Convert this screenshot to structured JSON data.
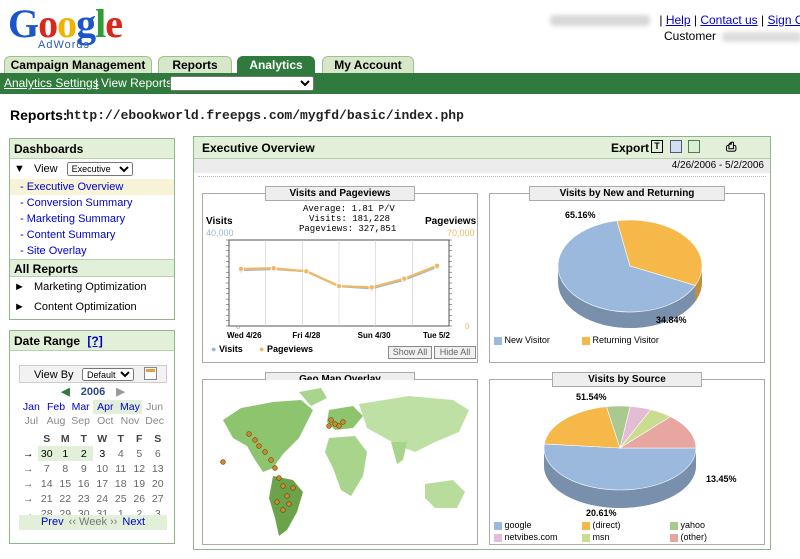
{
  "brand": {
    "logo_text": "Google",
    "logo_sub": "AdWords"
  },
  "top_links": {
    "help": "Help",
    "contact": "Contact us",
    "signout": "Sign Out",
    "customer_label": "Customer"
  },
  "tabs": [
    {
      "label": "Campaign Management",
      "active": false
    },
    {
      "label": "Reports",
      "active": false
    },
    {
      "label": "Analytics",
      "active": true
    },
    {
      "label": "My Account",
      "active": false
    }
  ],
  "subnav": {
    "settings": "Analytics Settings",
    "sep": "|",
    "view_reports": "View Reports:"
  },
  "page": {
    "reports_label": "Reports:",
    "reports_url": "http://ebookworld.freepgs.com/mygfd/basic/index.php"
  },
  "dashboards": {
    "header": "Dashboards",
    "view_label": "View",
    "view_value": "Executive",
    "items": [
      "- Executive Overview",
      "- Conversion Summary",
      "- Marketing Summary",
      "- Content Summary",
      "- Site Overlay"
    ],
    "all_reports": "All Reports",
    "reports": [
      "Marketing Optimization",
      "Content Optimization"
    ]
  },
  "date_range": {
    "header": "Date Range",
    "help": "[?]",
    "view_by": "View By",
    "view_by_value": "Default",
    "year": "2006",
    "months": [
      [
        "Jan",
        "Feb",
        "Mar",
        "Apr",
        "May",
        "Jun"
      ],
      [
        "Jul",
        "Aug",
        "Sep",
        "Oct",
        "Nov",
        "Dec"
      ]
    ],
    "weekdays": [
      "S",
      "M",
      "T",
      "W",
      "T",
      "F",
      "S"
    ],
    "weeks": [
      [
        "30",
        "1",
        "2",
        "3",
        "4",
        "5",
        "6"
      ],
      [
        "7",
        "8",
        "9",
        "10",
        "11",
        "12",
        "13"
      ],
      [
        "14",
        "15",
        "16",
        "17",
        "18",
        "19",
        "20"
      ],
      [
        "21",
        "22",
        "23",
        "24",
        "25",
        "26",
        "27"
      ],
      [
        "28",
        "29",
        "30",
        "31",
        "1",
        "2",
        "3"
      ]
    ],
    "prev": "Prev",
    "week": "‹‹ Week ››",
    "next": "Next"
  },
  "main": {
    "title": "Executive Overview",
    "export": "Export",
    "date_span": "4/26/2006 - 5/2/2006"
  },
  "visits_chart": {
    "title": "Visits and Pageviews",
    "left_label": "Visits",
    "right_label": "Pageviews",
    "left_max": "40,000",
    "right_max": "70,000",
    "left_min": "0",
    "right_min": "0",
    "avg": "Average: 1.81 P/V",
    "visits_total": "Visits: 181,228",
    "pageviews_total": "Pageviews: 327,851",
    "x_labels": [
      "Wed 4/26",
      "Fri 4/28",
      "Sun 4/30",
      "Tue 5/2"
    ],
    "legend_visits": "Visits",
    "legend_pageviews": "Pageviews",
    "show_all": "Show All",
    "hide_all": "Hide All"
  },
  "new_returning": {
    "title": "Visits by New and Returning",
    "new_pct": "65.16%",
    "ret_pct": "34.84%",
    "legend_new": "New Visitor",
    "legend_ret": "Returning Visitor"
  },
  "geo": {
    "title": "Geo Map Overlay"
  },
  "source": {
    "title": "Visits by Source",
    "google_pct": "51.54%",
    "direct_pct": "20.61%",
    "other_pct": "13.45%",
    "legend": [
      "google",
      "(direct)",
      "yahoo",
      "netvibes.com",
      "msn",
      "(other)"
    ]
  },
  "chart_data": [
    {
      "type": "line",
      "title": "Visits and Pageviews",
      "x": [
        "4/26",
        "4/27",
        "4/28",
        "4/29",
        "4/30",
        "5/1",
        "5/2"
      ],
      "ylim": [
        0,
        40000
      ],
      "y2lim": [
        0,
        70000
      ],
      "series": [
        {
          "name": "Visits",
          "values": [
            26000,
            26500,
            25500,
            18500,
            17500,
            21500,
            27500
          ]
        },
        {
          "name": "Pageviews",
          "values": [
            46500,
            47000,
            44500,
            32500,
            31500,
            38500,
            49000
          ]
        }
      ]
    },
    {
      "type": "pie",
      "title": "Visits by New and Returning",
      "categories": [
        "New Visitor",
        "Returning Visitor"
      ],
      "values": [
        65.16,
        34.84
      ],
      "colors": [
        "#9bb9dc",
        "#f7b84a"
      ]
    },
    {
      "type": "pie",
      "title": "Visits by Source",
      "categories": [
        "google",
        "(direct)",
        "yahoo",
        "netvibes.com",
        "msn",
        "(other)"
      ],
      "values": [
        51.54,
        20.61,
        5.0,
        4.5,
        4.9,
        13.45
      ],
      "colors": [
        "#9bb9dc",
        "#f7b84a",
        "#a9c98f",
        "#e4bcd6",
        "#c9dc8f",
        "#e8a6a0"
      ]
    }
  ]
}
